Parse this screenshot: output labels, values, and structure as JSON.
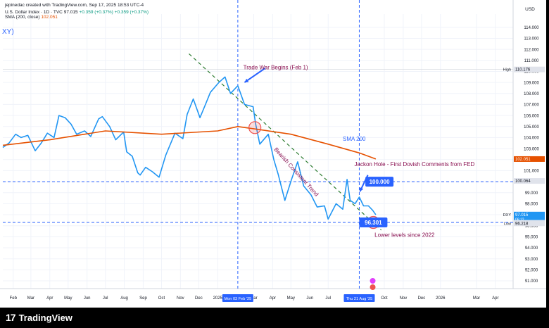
{
  "header": {
    "line1": "jepinedac created with TradingView.com, Sep 17, 2025 18:53 UTC-4",
    "line2_prefix": "U.S. Dollar Index · 1D · TVC",
    "line2_price": "97.015",
    "line2_change": "+0.359 (+0.37%)",
    "line2_change2": "+0.359 (+0.37%)",
    "sma_label": "SMA (200, close)",
    "sma_value": "102.051",
    "symbol_fragment": "XY)"
  },
  "branding": {
    "logo_text": "TradingView",
    "logo_mark": "17"
  },
  "colors": {
    "price": "#2196f3",
    "sma": "#e65100",
    "trend": "#2e7d32",
    "hline": "#2962ff",
    "annotation": "#880e4f",
    "callout": "#2962ff",
    "circle": "#ef5350"
  },
  "chart_data": {
    "type": "line",
    "title": "U.S. Dollar Index · 1D · TVC",
    "y_axis": {
      "unit_label": "USD",
      "ylim": [
        90.3,
        115.2
      ],
      "ticks": [
        "114.000",
        "113.000",
        "112.000",
        "111.000",
        "110.000",
        "109.000",
        "108.000",
        "107.000",
        "106.000",
        "105.000",
        "104.000",
        "103.000",
        "102.000",
        "101.000",
        "100.000",
        "99.000",
        "98.000",
        "97.000",
        "96.000",
        "95.000",
        "94.000",
        "93.000",
        "92.000",
        "91.000"
      ],
      "tick_values": [
        114,
        113,
        112,
        111,
        110,
        109,
        108,
        107,
        106,
        105,
        104,
        103,
        102,
        101,
        100,
        99,
        98,
        97,
        96,
        95,
        94,
        93,
        92,
        91
      ]
    },
    "x_axis": {
      "range": [
        "2024-01-15",
        "2026-04-30"
      ],
      "ticks": [
        {
          "label": "Feb",
          "date": "2024-02-01"
        },
        {
          "label": "Mar",
          "date": "2024-03-01"
        },
        {
          "label": "Apr",
          "date": "2024-04-01"
        },
        {
          "label": "May",
          "date": "2024-05-01"
        },
        {
          "label": "Jun",
          "date": "2024-06-01"
        },
        {
          "label": "Jul",
          "date": "2024-07-01"
        },
        {
          "label": "Aug",
          "date": "2024-08-01"
        },
        {
          "label": "Sep",
          "date": "2024-09-01"
        },
        {
          "label": "Oct",
          "date": "2024-10-01"
        },
        {
          "label": "Nov",
          "date": "2024-11-01"
        },
        {
          "label": "Dec",
          "date": "2024-12-01"
        },
        {
          "label": "2025",
          "date": "2025-01-01"
        },
        {
          "label": "Mar",
          "date": "2025-03-01"
        },
        {
          "label": "Apr",
          "date": "2025-04-01"
        },
        {
          "label": "May",
          "date": "2025-05-01"
        },
        {
          "label": "Jun",
          "date": "2025-06-01"
        },
        {
          "label": "Jul",
          "date": "2025-07-01"
        },
        {
          "label": "Oct",
          "date": "2025-10-01"
        },
        {
          "label": "Nov",
          "date": "2025-11-01"
        },
        {
          "label": "Dec",
          "date": "2025-12-01"
        },
        {
          "label": "2026",
          "date": "2026-01-01"
        },
        {
          "label": "Mar",
          "date": "2026-03-01"
        },
        {
          "label": "Apr",
          "date": "2026-04-01"
        }
      ],
      "highlighted": [
        {
          "label": "Mon 03 Feb '25",
          "date": "2025-02-03"
        },
        {
          "label": "Thu 21 Aug '25",
          "date": "2025-08-21"
        }
      ]
    },
    "series": [
      {
        "name": "DXY",
        "x": [
          "2024-01-15",
          "2024-01-25",
          "2024-02-05",
          "2024-02-14",
          "2024-02-25",
          "2024-03-08",
          "2024-03-18",
          "2024-03-28",
          "2024-04-08",
          "2024-04-16",
          "2024-04-26",
          "2024-05-06",
          "2024-05-15",
          "2024-05-28",
          "2024-06-07",
          "2024-06-20",
          "2024-06-26",
          "2024-07-08",
          "2024-07-18",
          "2024-07-31",
          "2024-08-05",
          "2024-08-14",
          "2024-08-23",
          "2024-08-27",
          "2024-09-05",
          "2024-09-16",
          "2024-09-27",
          "2024-10-08",
          "2024-10-23",
          "2024-11-05",
          "2024-11-12",
          "2024-11-22",
          "2024-12-03",
          "2024-12-12",
          "2024-12-20",
          "2025-01-03",
          "2025-01-13",
          "2025-01-22",
          "2025-02-03",
          "2025-02-14",
          "2025-02-28",
          "2025-03-04",
          "2025-03-11",
          "2025-03-25",
          "2025-04-03",
          "2025-04-10",
          "2025-04-21",
          "2025-05-02",
          "2025-05-12",
          "2025-05-22",
          "2025-06-03",
          "2025-06-13",
          "2025-06-25",
          "2025-07-01",
          "2025-07-14",
          "2025-07-25",
          "2025-08-01",
          "2025-08-06",
          "2025-08-14",
          "2025-08-21",
          "2025-08-28",
          "2025-09-05",
          "2025-09-12",
          "2025-09-17"
        ],
        "y": [
          103.1,
          103.5,
          104.3,
          104.0,
          104.2,
          102.8,
          103.5,
          104.4,
          104.0,
          106.0,
          105.8,
          105.2,
          104.3,
          104.6,
          104.1,
          105.7,
          105.9,
          105.0,
          103.8,
          104.5,
          102.7,
          102.3,
          100.8,
          100.6,
          101.3,
          100.9,
          100.4,
          102.4,
          104.4,
          103.9,
          106.1,
          107.5,
          105.8,
          107.0,
          108.1,
          109.0,
          109.5,
          108.0,
          108.7,
          107.0,
          106.8,
          105.3,
          103.4,
          104.3,
          102.0,
          100.7,
          98.3,
          100.2,
          101.8,
          99.6,
          98.8,
          97.7,
          97.8,
          96.6,
          98.0,
          97.5,
          100.2,
          98.3,
          98.0,
          98.6,
          97.8,
          97.8,
          97.4,
          97.0
        ]
      },
      {
        "name": "SMA (200, close)",
        "x": [
          "2024-01-15",
          "2024-04-01",
          "2024-07-01",
          "2024-10-01",
          "2025-01-01",
          "2025-02-03",
          "2025-03-01",
          "2025-05-01",
          "2025-07-01",
          "2025-08-21",
          "2025-09-17"
        ],
        "y": [
          103.3,
          103.8,
          104.6,
          104.3,
          104.6,
          105.0,
          104.8,
          104.3,
          103.4,
          102.6,
          102.051
        ]
      }
    ],
    "horizontal_lines": [
      {
        "value": 100.0,
        "label": "100.000"
      },
      {
        "value": 96.301,
        "label": "96.301"
      }
    ],
    "price_labels": [
      {
        "text": "High",
        "value": "110.176",
        "y": 110.176
      },
      {
        "text": "",
        "value": "102.051",
        "y": 102.051,
        "color": "#e65100"
      },
      {
        "text": "",
        "value": "100.064",
        "y": 100.064
      },
      {
        "text": "DXY",
        "value": "97.015",
        "y": 97.015,
        "color": "#2196f3",
        "sub": "06:12"
      },
      {
        "text": "",
        "value": "96.265",
        "y": 96.265
      },
      {
        "text": "Low",
        "value": "96.218",
        "y": 96.218
      }
    ],
    "trend_line": {
      "start": {
        "x": "2024-11-15",
        "y": 111.6
      },
      "end": {
        "x": "2025-09-26",
        "y": 95.6
      }
    },
    "annotations": [
      {
        "name": "trade-war",
        "text": "Trade War Begins (Feb 1)",
        "x": "2025-02-12",
        "y": 110.2
      },
      {
        "name": "bearish-trend",
        "text": "Bearish Consistent Trend",
        "x": "2025-04-03",
        "y": 102.9
      },
      {
        "name": "sma200",
        "text": "SMA 200",
        "x": "2025-07-25",
        "y": 103.7
      },
      {
        "name": "jackson-hole",
        "text": "Jackon Hole  - First Dovish Comments from FED",
        "x": "2025-08-13",
        "y": 101.4
      },
      {
        "name": "lower-levels",
        "text": "Lower levels since 2022",
        "x": "2025-09-15",
        "y": 95.0
      }
    ],
    "callouts": [
      {
        "text": "100.000",
        "x": "2025-09-23",
        "y": 100.0
      },
      {
        "text": "96.301",
        "x": "2025-09-13",
        "y": 96.301
      }
    ],
    "circles": [
      {
        "x": "2025-03-03",
        "y": 104.9
      },
      {
        "x": "2025-09-13",
        "y": 96.3
      }
    ],
    "vertical_lines": [
      "2025-02-03",
      "2025-08-21"
    ],
    "grid": true
  }
}
